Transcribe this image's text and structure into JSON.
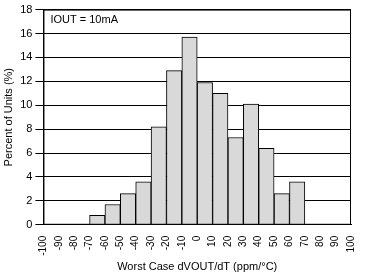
{
  "chart_data": {
    "type": "histogram",
    "annotation": "IOUT = 10mA",
    "x_label": "Worst Case dVOUT/dT (ppm/°C)",
    "y_label": "Percent of Units (%)",
    "bins": [
      -70,
      -60,
      -50,
      -40,
      -30,
      -20,
      -10,
      0,
      10,
      20,
      30,
      40,
      50,
      60,
      70
    ],
    "values": [
      0.8,
      1.7,
      2.6,
      3.6,
      8.2,
      12.9,
      15.7,
      11.9,
      11.0,
      7.3,
      10.1,
      6.4,
      2.6,
      3.6
    ],
    "color": "#d9d9d9",
    "xlim": [
      -100,
      100
    ],
    "xticks": [
      -100,
      -90,
      -80,
      -70,
      -60,
      -50,
      -40,
      -30,
      -20,
      -10,
      0,
      10,
      20,
      30,
      40,
      50,
      60,
      70,
      80,
      90,
      100
    ],
    "ylim": [
      0,
      18
    ],
    "yticks": [
      0,
      2,
      4,
      6,
      8,
      10,
      12,
      14,
      16,
      18
    ],
    "grid": true
  }
}
